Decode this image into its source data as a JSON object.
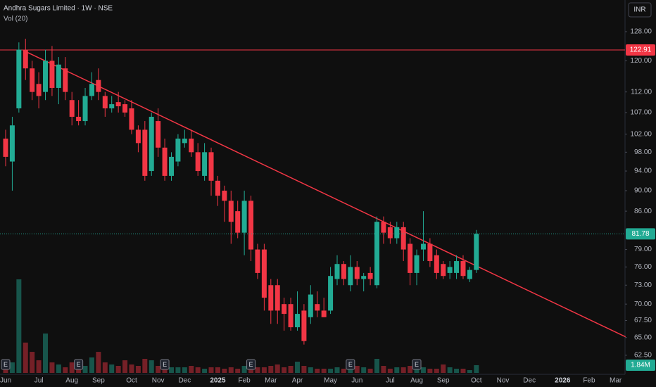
{
  "chart_data": {
    "type": "candlestick",
    "title": "Andhra Sugars Limited · 1W · NSE",
    "subtitle": "Vol (20)",
    "currency": "INR",
    "log_scale": true,
    "up_color": "#22ab94",
    "down_color": "#f23645",
    "categories": [
      "Jun",
      null,
      null,
      null,
      null,
      "Jul",
      null,
      null,
      null,
      null,
      "Aug",
      null,
      null,
      null,
      "Sep",
      null,
      null,
      null,
      null,
      "Oct",
      null,
      null,
      null,
      "Nov",
      null,
      null,
      null,
      "Dec",
      null,
      null,
      null,
      null,
      "2025",
      null,
      null,
      null,
      "Feb",
      null,
      null,
      null,
      "Mar",
      null,
      null,
      null,
      "Apr",
      null,
      null,
      null,
      null,
      "May",
      null,
      null,
      null,
      "Jun",
      null,
      null,
      null,
      null,
      "Jul",
      null,
      null,
      null,
      "Aug",
      null,
      null,
      null,
      "Sep",
      null,
      null,
      null,
      null,
      "Oct",
      null,
      null,
      null,
      "Nov",
      null,
      null,
      null,
      "Dec",
      null,
      null,
      null,
      null,
      "2026",
      null,
      null,
      null,
      "Feb",
      null,
      null,
      null,
      "Mar",
      null
    ],
    "open": [
      101,
      96,
      108,
      123,
      118,
      114,
      112,
      120,
      113,
      118,
      110,
      106,
      105,
      111,
      115,
      111,
      108,
      109.5,
      109,
      108,
      103,
      103,
      94,
      105,
      99,
      93,
      96,
      100,
      101,
      98,
      93,
      98,
      92,
      90,
      88,
      86,
      82,
      88,
      79,
      79,
      73,
      73,
      70,
      70,
      66.5,
      69,
      68,
      70,
      69,
      69,
      74,
      76.5,
      73,
      76,
      74,
      75,
      73,
      84,
      83,
      81,
      83,
      80,
      75,
      79,
      80,
      78,
      76.5,
      75,
      75,
      77,
      74,
      75.5,
      null,
      null,
      null,
      null,
      null,
      null,
      null,
      null,
      null,
      null,
      null,
      null,
      null,
      null,
      null,
      null,
      null,
      null,
      null,
      null,
      null,
      null
    ],
    "high": [
      103,
      106,
      125,
      126,
      120,
      117,
      123,
      124,
      121,
      121,
      112,
      110,
      113,
      117,
      118,
      112,
      111,
      112,
      110,
      110,
      104,
      105,
      107,
      108,
      101,
      98,
      102,
      103,
      103,
      100,
      100,
      99,
      93,
      91,
      90,
      88,
      90,
      89,
      80,
      80,
      74,
      74,
      71,
      71,
      72,
      70,
      73,
      72,
      71,
      76,
      78,
      77,
      78,
      77,
      75,
      76,
      85,
      85,
      84,
      84,
      84,
      81,
      79,
      86,
      81,
      79,
      77,
      77,
      78,
      78,
      76,
      82.5,
      null,
      null,
      null,
      null,
      null,
      null,
      null,
      null,
      null,
      null,
      null,
      null,
      null,
      null,
      null,
      null,
      null,
      null,
      null,
      null,
      null,
      null
    ],
    "low": [
      95,
      90,
      107,
      115,
      110,
      108,
      110,
      111,
      109,
      110,
      104,
      104,
      104,
      110,
      110,
      106,
      107,
      107,
      106,
      102,
      98,
      92,
      93,
      97,
      92,
      92,
      95,
      99,
      97,
      93,
      92,
      89,
      87,
      84,
      80,
      81,
      78,
      77,
      74,
      69,
      67,
      67,
      66,
      66,
      66,
      64,
      67,
      68,
      68,
      68.5,
      73,
      73,
      72,
      73,
      72,
      73,
      72.5,
      80,
      80,
      80,
      77,
      73,
      73,
      77,
      76,
      74,
      74,
      74,
      74,
      74,
      73.5,
      75,
      null,
      null,
      null,
      null,
      null,
      null,
      null,
      null,
      null,
      null,
      null,
      null,
      null,
      null,
      null,
      null,
      null,
      null,
      null,
      null,
      null,
      null
    ],
    "close": [
      97,
      104,
      123,
      118,
      112,
      111,
      120,
      113,
      119,
      112,
      106,
      105,
      111,
      114,
      112,
      108,
      109,
      108.5,
      107,
      103,
      100,
      93,
      106,
      99,
      93,
      97,
      101,
      101,
      98,
      94,
      98,
      92,
      89,
      88,
      84,
      82,
      88,
      79,
      75,
      71,
      69,
      69,
      68.5,
      66.5,
      68.5,
      64.5,
      71.5,
      69,
      68,
      74.5,
      76.5,
      74,
      76,
      74,
      74.5,
      74,
      84,
      82,
      81,
      83,
      79,
      75,
      78,
      80,
      77,
      75,
      74.5,
      76,
      77,
      74.5,
      75.5,
      81.78,
      null,
      null,
      null,
      null,
      null,
      null,
      null,
      null,
      null,
      null,
      null,
      null,
      null,
      null,
      null,
      null,
      null,
      null,
      null,
      null,
      null,
      null
    ],
    "volume": [
      1.67,
      2.5,
      22.2,
      7.2,
      5.0,
      3.0,
      9.35,
      2.5,
      2.0,
      1.34,
      2.5,
      2.0,
      1.67,
      3.67,
      5.0,
      2.5,
      2.0,
      1.67,
      3.0,
      2.0,
      1.67,
      3.34,
      3.0,
      1.67,
      2.0,
      1.34,
      1.34,
      1.34,
      1.67,
      1.34,
      1.0,
      1.34,
      1.34,
      1.0,
      1.34,
      1.0,
      1.67,
      2.0,
      1.34,
      1.34,
      1.67,
      2.0,
      1.34,
      1.67,
      2.67,
      1.67,
      1.34,
      1.0,
      1.0,
      1.0,
      1.34,
      1.0,
      1.34,
      1.67,
      1.34,
      1.0,
      3.34,
      1.67,
      1.0,
      1.34,
      1.34,
      1.67,
      1.34,
      1.34,
      1.0,
      1.0,
      2.0,
      1.34,
      1.0,
      1.0,
      0.67,
      1.84,
      null,
      null,
      null,
      null,
      null,
      null,
      null,
      null,
      null,
      null,
      null,
      null,
      null,
      null,
      null,
      null,
      null,
      null,
      null,
      null,
      null,
      null
    ],
    "volume_label": "1.84M",
    "ylim": [
      60.1,
      137.3
    ],
    "yticks": [
      {
        "value": 128,
        "label": "128.00"
      },
      {
        "value": 120,
        "label": "120.00"
      },
      {
        "value": 112,
        "label": "112.00"
      },
      {
        "value": 107,
        "label": "107.00"
      },
      {
        "value": 102,
        "label": "102.00"
      },
      {
        "value": 98,
        "label": "98.00"
      },
      {
        "value": 94,
        "label": "94.00"
      },
      {
        "value": 90,
        "label": "90.00"
      },
      {
        "value": 86,
        "label": "86.00"
      },
      {
        "value": 79,
        "label": "79.00"
      },
      {
        "value": 76,
        "label": "76.00"
      },
      {
        "value": 73,
        "label": "73.00"
      },
      {
        "value": 70,
        "label": "70.00"
      },
      {
        "value": 67.5,
        "label": "67.50"
      },
      {
        "value": 65,
        "label": "65.00"
      },
      {
        "value": 62.5,
        "label": "62.50"
      }
    ],
    "horizontal_line": 122.91,
    "trendline": {
      "x": [
        3,
        93.5
      ],
      "y": [
        122.5,
        65.1
      ]
    },
    "earnings": {
      "label": "E",
      "x": [
        0,
        11,
        24,
        37,
        52,
        62
      ]
    }
  }
}
